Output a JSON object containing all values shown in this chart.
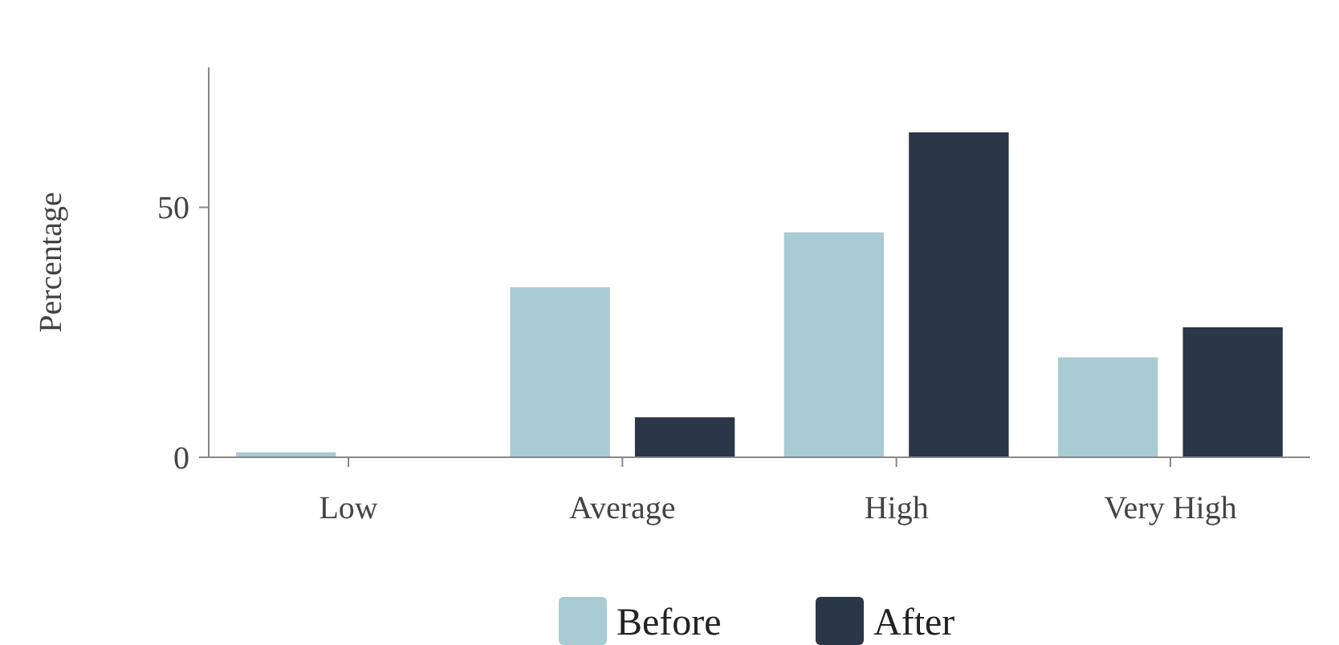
{
  "chart_data": {
    "type": "bar",
    "ylabel": "Percentage",
    "categories": [
      "Low",
      "Average",
      "High",
      "Very High"
    ],
    "series": [
      {
        "name": "Before",
        "color": "#a9cbd3",
        "values": [
          1,
          34,
          45,
          20
        ]
      },
      {
        "name": "After",
        "color": "#2b3648",
        "values": [
          0,
          8,
          65,
          26
        ]
      }
    ],
    "ylim": [
      0,
      78
    ],
    "yticks": [
      0,
      50
    ],
    "grid": false,
    "legend": "bottom"
  }
}
